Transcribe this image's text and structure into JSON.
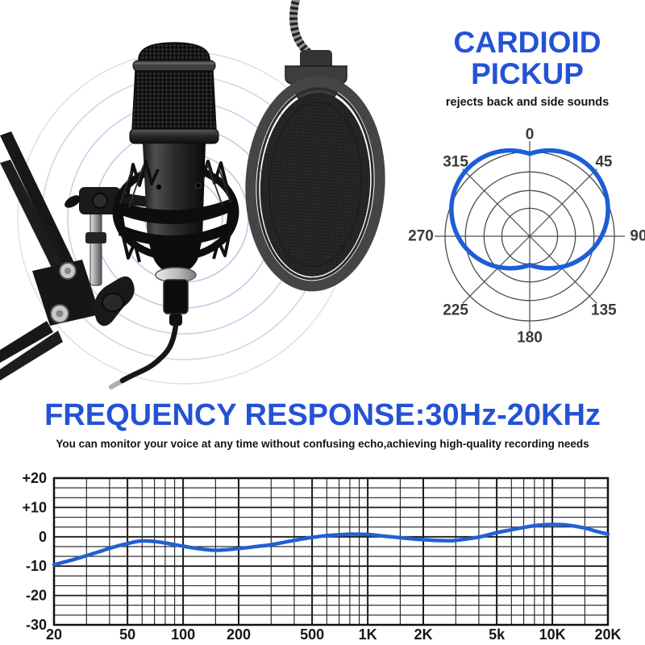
{
  "cardioid": {
    "title_line1": "CARDIOID",
    "title_line2": "PICKUP",
    "subtitle": "rejects back and side sounds"
  },
  "frequency": {
    "title": "FREQUENCY RESPONSE:30Hz-20KHz",
    "subtitle": "You can monitor your voice at any time without confusing echo,achieving high-quality recording needs"
  },
  "colors": {
    "accent_blue": "#2452d5",
    "polar_curve_blue": "#1d5ed6",
    "freq_curve_blue": "#2160d2",
    "polar_grid_gray": "#4c4c4c",
    "freq_grid_dark": "#1c1c1c",
    "label_gray": "#3a3a3a",
    "sound_wave_blue": "#b0c6e4"
  },
  "chart_data": [
    {
      "type": "polar",
      "name": "cardioid-pickup-pattern",
      "pattern": "cardioid",
      "angle_tick_labels": [
        {
          "deg": 0,
          "label": "0"
        },
        {
          "deg": 45,
          "label": "45"
        },
        {
          "deg": 90,
          "label": "90"
        },
        {
          "deg": 135,
          "label": "135"
        },
        {
          "deg": 180,
          "label": "180"
        },
        {
          "deg": 225,
          "label": "225"
        },
        {
          "deg": 270,
          "label": "270"
        },
        {
          "deg": 315,
          "label": "315"
        }
      ],
      "ring_fractions": [
        0.33,
        0.54,
        0.76,
        1.0
      ],
      "radial_line_step_deg": 45,
      "pattern_radius_by_angle_frac": {
        "0": 1.0,
        "45": 1.0,
        "90": 0.92,
        "135": 0.8,
        "180": 0.34,
        "225": 0.8,
        "270": 0.92,
        "315": 1.0
      },
      "lobe_model_fractions": {
        "lobe_radius": 0.695,
        "lobe_dx": 0.229,
        "lobe_dy": -0.317
      }
    },
    {
      "type": "line",
      "name": "frequency-response-curve",
      "x_scale": "log",
      "x_range_hz": [
        20,
        20000
      ],
      "ylim_db": [
        -30,
        20
      ],
      "y_major_ticks": [
        {
          "db": 20,
          "label": "+20"
        },
        {
          "db": 10,
          "label": "+10"
        },
        {
          "db": 0,
          "label": "0"
        },
        {
          "db": -10,
          "label": "-10"
        },
        {
          "db": -20,
          "label": "-20"
        },
        {
          "db": -30,
          "label": "-30"
        }
      ],
      "y_minor_divisions_per_10db": 3,
      "x_major_ticks": [
        {
          "f": 20,
          "label": "20"
        },
        {
          "f": 50,
          "label": "50"
        },
        {
          "f": 100,
          "label": "100"
        },
        {
          "f": 200,
          "label": "200"
        },
        {
          "f": 500,
          "label": "500"
        },
        {
          "f": 1000,
          "label": "1K"
        },
        {
          "f": 2000,
          "label": "2K"
        },
        {
          "f": 5000,
          "label": "5k"
        },
        {
          "f": 10000,
          "label": "10K"
        },
        {
          "f": 20000,
          "label": "20K"
        }
      ],
      "x_minor_gridlines_hz": [
        30,
        40,
        60,
        70,
        80,
        90,
        150,
        300,
        400,
        600,
        700,
        800,
        900,
        1500,
        3000,
        4000,
        6000,
        7000,
        8000,
        9000,
        15000
      ],
      "series": [
        {
          "name": "response_dB",
          "points": [
            [
              20,
              -9.5
            ],
            [
              25,
              -7.9
            ],
            [
              30,
              -6.4
            ],
            [
              35,
              -5.1
            ],
            [
              40,
              -3.9
            ],
            [
              45,
              -3.0
            ],
            [
              50,
              -2.3
            ],
            [
              55,
              -1.7
            ],
            [
              60,
              -1.4
            ],
            [
              70,
              -1.6
            ],
            [
              80,
              -2.1
            ],
            [
              90,
              -2.7
            ],
            [
              100,
              -3.2
            ],
            [
              120,
              -4.0
            ],
            [
              150,
              -4.6
            ],
            [
              200,
              -4.0
            ],
            [
              250,
              -3.3
            ],
            [
              300,
              -2.7
            ],
            [
              400,
              -1.2
            ],
            [
              500,
              -0.2
            ],
            [
              600,
              0.4
            ],
            [
              700,
              0.7
            ],
            [
              800,
              0.9
            ],
            [
              1000,
              0.8
            ],
            [
              1200,
              0.3
            ],
            [
              1500,
              -0.3
            ],
            [
              2000,
              -1.0
            ],
            [
              2500,
              -1.3
            ],
            [
              3000,
              -1.2
            ],
            [
              4000,
              -0.1
            ],
            [
              5000,
              1.4
            ],
            [
              6000,
              2.4
            ],
            [
              7000,
              3.2
            ],
            [
              8000,
              3.8
            ],
            [
              9000,
              4.1
            ],
            [
              10000,
              4.2
            ],
            [
              12000,
              4.0
            ],
            [
              15000,
              3.0
            ],
            [
              17000,
              2.0
            ],
            [
              20000,
              0.9
            ]
          ]
        }
      ]
    }
  ]
}
